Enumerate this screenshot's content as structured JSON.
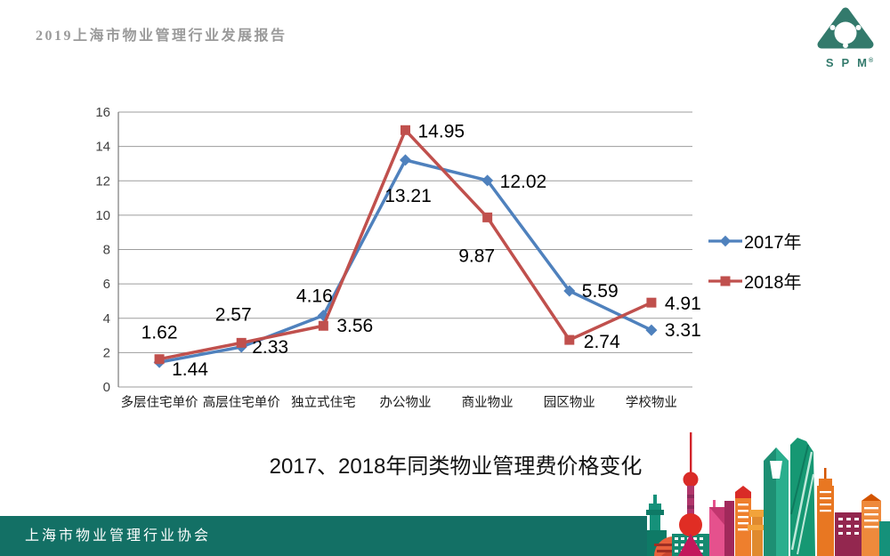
{
  "header": {
    "report_title": "2019上海市物业管理行业发展报告"
  },
  "logo": {
    "brand": "SPM",
    "registered_mark": "®",
    "color": "#337A6C"
  },
  "chart_data": {
    "type": "line",
    "title": "2017、2018年同类物业管理费价格变化",
    "categories": [
      "多层住宅单价",
      "高层住宅单价",
      "独立式住宅",
      "办公物业",
      "商业物业",
      "园区物业",
      "学校物业"
    ],
    "series": [
      {
        "name": "2017年",
        "color": "#4F81BD",
        "marker": "diamond",
        "values": [
          1.44,
          2.33,
          4.16,
          13.21,
          12.02,
          5.59,
          3.31
        ],
        "label_offsets": [
          [
            14,
            15,
            "start"
          ],
          [
            12,
            7,
            "start"
          ],
          [
            -10,
            -15,
            "middle"
          ],
          [
            3,
            47,
            "middle"
          ],
          [
            14,
            8,
            "start"
          ],
          [
            14,
            7,
            "start"
          ],
          [
            15,
            7,
            "start"
          ]
        ]
      },
      {
        "name": "2018年",
        "color": "#C0504D",
        "marker": "square",
        "values": [
          1.62,
          2.57,
          3.56,
          14.95,
          9.87,
          2.74,
          4.91
        ],
        "label_offsets": [
          [
            0,
            -23,
            "middle"
          ],
          [
            -9,
            -25,
            "middle"
          ],
          [
            15,
            7,
            "start"
          ],
          [
            14,
            8,
            "start"
          ],
          [
            -12,
            50,
            "middle"
          ],
          [
            16,
            9,
            "start"
          ],
          [
            15,
            8,
            "start"
          ]
        ]
      }
    ],
    "ylim": [
      0,
      16
    ],
    "ytick_step": 2,
    "grid": true,
    "legend_position": "right",
    "value_label_decimals": 2
  },
  "footer": {
    "organization": "上海市物业管理行业协会",
    "bar_color": "#137065"
  }
}
